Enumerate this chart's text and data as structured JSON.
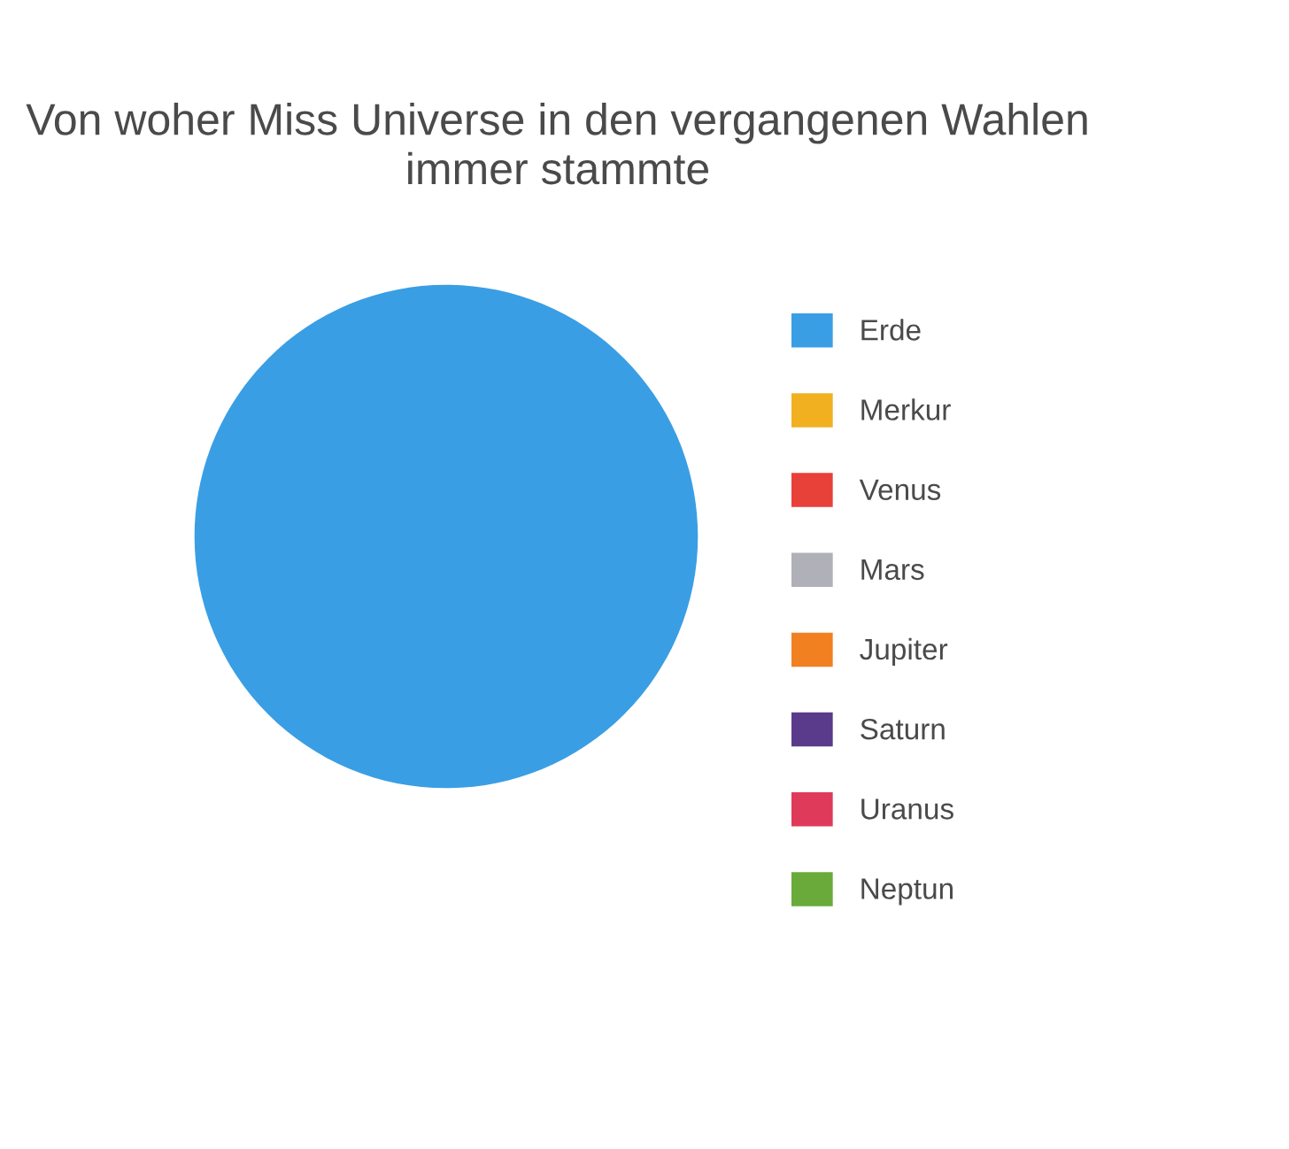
{
  "chart_data": {
    "type": "pie",
    "title": "Von woher Miss Universe in den vergangenen Wahlen\nimmer stammte",
    "categories": [
      "Erde",
      "Merkur",
      "Venus",
      "Mars",
      "Jupiter",
      "Saturn",
      "Uranus",
      "Neptun"
    ],
    "values": [
      100,
      0,
      0,
      0,
      0,
      0,
      0,
      0
    ],
    "colors": [
      "#3a9ee4",
      "#f0b020",
      "#e8413a",
      "#b0b0b8",
      "#f08020",
      "#5a3a8a",
      "#e03a5a",
      "#6aaa3a"
    ],
    "legend": "right"
  }
}
